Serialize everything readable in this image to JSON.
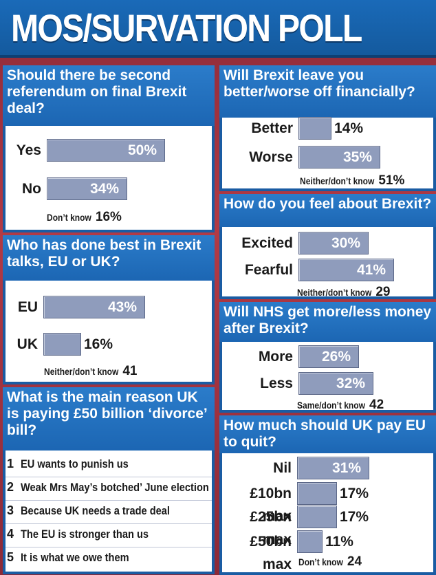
{
  "title": "MOS/SURVATION POLL",
  "colors": {
    "header": "#1a6ab8",
    "question_band": "#1c66b3",
    "bar": "#8f9cbc",
    "panel": "#ffffff",
    "background": "#b23a45"
  },
  "chart_data": [
    {
      "type": "bar",
      "question": "Should there be second referendum on final Brexit deal?",
      "categories": [
        "Yes",
        "No"
      ],
      "values": [
        50,
        34
      ],
      "labels": [
        "50%",
        "34%"
      ],
      "note_label": "Don’t know",
      "note_value": "16%"
    },
    {
      "type": "bar",
      "question": "Who has done best in Brexit talks, EU or UK?",
      "categories": [
        "EU",
        "UK"
      ],
      "values": [
        43,
        16
      ],
      "labels": [
        "43%",
        "16%"
      ],
      "note_label": "Neither/don’t know",
      "note_value": "41"
    },
    {
      "type": "table",
      "question": "What is the main reason UK is paying £50 billion ‘divorce’ bill?",
      "items": [
        {
          "num": "1",
          "text": "EU wants to punish us"
        },
        {
          "num": "2",
          "text": "Weak Mrs May’s botched’ June election"
        },
        {
          "num": "3",
          "text": "Because UK needs a trade deal"
        },
        {
          "num": "4",
          "text": "The EU is stronger than us"
        },
        {
          "num": "5",
          "text": "It is what we owe them"
        }
      ]
    },
    {
      "type": "bar",
      "question": "Will Brexit leave you better/worse off financially?",
      "categories": [
        "Better",
        "Worse"
      ],
      "values": [
        14,
        35
      ],
      "labels": [
        "14%",
        "35%"
      ],
      "note_label": "Neither/don’t know",
      "note_value": "51%"
    },
    {
      "type": "bar",
      "question": "How do you feel about Brexit?",
      "categories": [
        "Excited",
        "Fearful"
      ],
      "values": [
        30,
        41
      ],
      "labels": [
        "30%",
        "41%"
      ],
      "note_label": "Neither/don’t know",
      "note_value": "29"
    },
    {
      "type": "bar",
      "question": "Will NHS get more/less money after Brexit?",
      "categories": [
        "More",
        "Less"
      ],
      "values": [
        26,
        32
      ],
      "labels": [
        "26%",
        "32%"
      ],
      "note_label": "Same/don’t know",
      "note_value": "42"
    },
    {
      "type": "bar",
      "question": "How much should UK pay EU to quit?",
      "categories": [
        "Nil",
        "£10bn max",
        "£25bn max",
        "£50bn max"
      ],
      "values": [
        31,
        17,
        17,
        11
      ],
      "labels": [
        "31%",
        "17%",
        "17%",
        "11%"
      ],
      "note_label": "Don’t know",
      "note_value": "24"
    }
  ]
}
